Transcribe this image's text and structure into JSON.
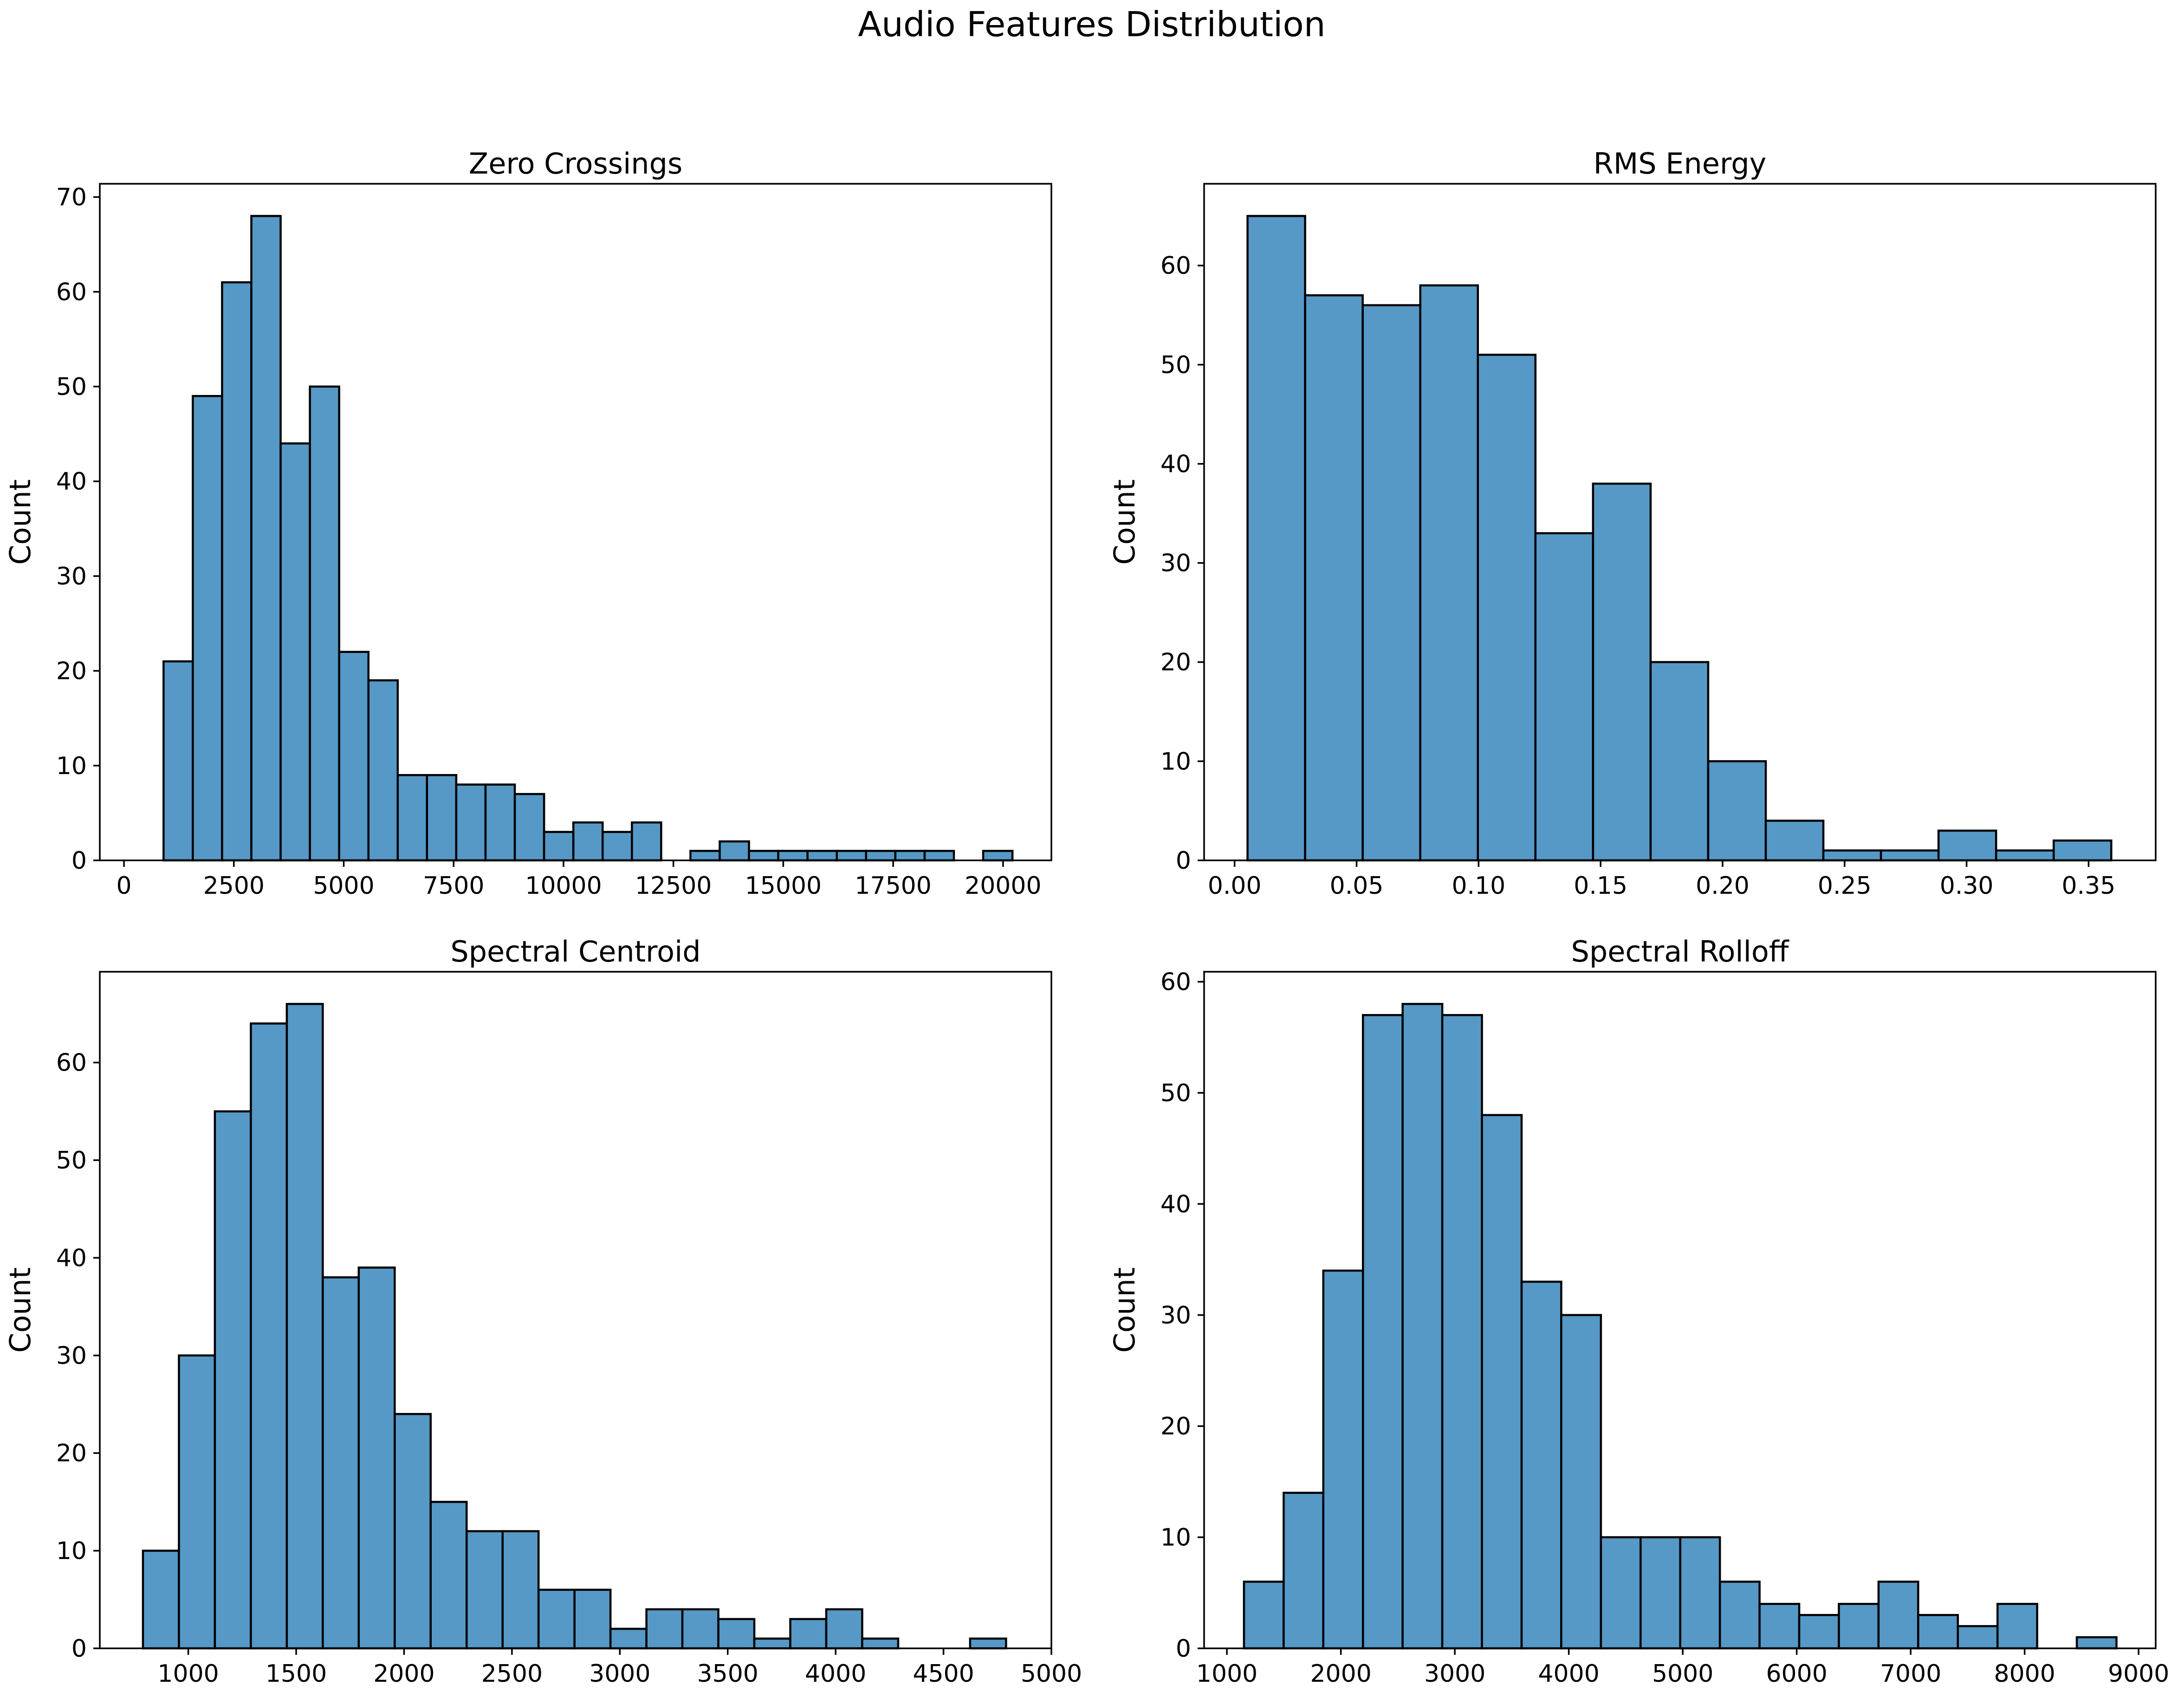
{
  "figure": {
    "title": "Audio Features Distribution"
  },
  "style": {
    "bar_fill": "#5698c6",
    "bar_edge": "#000000",
    "axes_edge": "#000000"
  },
  "chart_data": [
    {
      "type": "bar",
      "title": "Zero Crossings",
      "xlabel": "",
      "ylabel": "Count",
      "xlim": [
        -550,
        21100
      ],
      "ylim": [
        0,
        71.4
      ],
      "xticks": [
        0,
        2500,
        5000,
        7500,
        10000,
        12500,
        15000,
        17500,
        20000
      ],
      "yticks": [
        0,
        10,
        20,
        30,
        40,
        50,
        60,
        70
      ],
      "bin_edges": [
        900,
        1566,
        2232,
        2898,
        3564,
        4230,
        4896,
        5562,
        6228,
        6894,
        7560,
        8226,
        8892,
        9558,
        10224,
        10890,
        11556,
        12222,
        12888,
        13554,
        14220,
        14886,
        15552,
        16218,
        16884,
        17550,
        18216,
        18882,
        19548,
        20214
      ],
      "values": [
        21,
        49,
        61,
        68,
        44,
        50,
        22,
        19,
        9,
        9,
        8,
        8,
        7,
        3,
        4,
        3,
        4,
        0,
        1,
        2,
        1,
        1,
        1,
        1,
        1,
        1,
        1,
        0,
        1
      ]
    },
    {
      "type": "bar",
      "title": "RMS Energy",
      "xlabel": "",
      "ylabel": "Count",
      "xlim": [
        -0.0125,
        0.3775
      ],
      "ylim": [
        0,
        68.25
      ],
      "xticks": [
        0.0,
        0.05,
        0.1,
        0.15,
        0.2,
        0.25,
        0.3,
        0.35
      ],
      "xtick_labels": [
        "0.00",
        "0.05",
        "0.10",
        "0.15",
        "0.20",
        "0.25",
        "0.30",
        "0.35"
      ],
      "yticks": [
        0,
        10,
        20,
        30,
        40,
        50,
        60
      ],
      "bin_edges": [
        0.0053,
        0.0289,
        0.0525,
        0.0761,
        0.0997,
        0.1233,
        0.1469,
        0.1705,
        0.1941,
        0.2177,
        0.2413,
        0.2649,
        0.2885,
        0.3121,
        0.3357,
        0.3593
      ],
      "values": [
        65,
        57,
        56,
        58,
        51,
        33,
        38,
        20,
        10,
        4,
        1,
        1,
        3,
        1,
        2
      ]
    },
    {
      "type": "bar",
      "title": "Spectral Centroid",
      "xlabel": "",
      "ylabel": "Count",
      "xlim": [
        590,
        5000
      ],
      "ylim": [
        0,
        69.3
      ],
      "xticks": [
        1000,
        1500,
        2000,
        2500,
        3000,
        3500,
        4000,
        4500,
        5000
      ],
      "yticks": [
        0,
        10,
        20,
        30,
        40,
        50,
        60
      ],
      "bin_edges": [
        790,
        956.7,
        1123.3,
        1290,
        1456.7,
        1623.3,
        1790,
        1956.7,
        2123.3,
        2290,
        2456.7,
        2623.3,
        2790,
        2956.7,
        3123.3,
        3290,
        3456.7,
        3623.3,
        3790,
        3956.7,
        4123.3,
        4290,
        4456.7,
        4623.3,
        4790
      ],
      "values": [
        10,
        30,
        55,
        64,
        66,
        38,
        39,
        24,
        15,
        12,
        12,
        6,
        6,
        2,
        4,
        4,
        3,
        1,
        3,
        4,
        1,
        0,
        0,
        1
      ]
    },
    {
      "type": "bar",
      "title": "Spectral Rolloff",
      "xlabel": "",
      "ylabel": "Count",
      "xlim": [
        800,
        9150
      ],
      "ylim": [
        0,
        60.9
      ],
      "xticks": [
        1000,
        2000,
        3000,
        4000,
        5000,
        6000,
        7000,
        8000,
        9000
      ],
      "yticks": [
        0,
        10,
        20,
        30,
        40,
        50,
        60
      ],
      "bin_edges": [
        1150,
        1498,
        1846,
        2194,
        2542,
        2890,
        3238,
        3586,
        3934,
        4282,
        4630,
        4978,
        5326,
        5674,
        6022,
        6370,
        6718,
        7066,
        7414,
        7762,
        8110,
        8458,
        8806
      ],
      "values": [
        6,
        14,
        34,
        57,
        58,
        57,
        48,
        33,
        30,
        10,
        10,
        10,
        6,
        4,
        3,
        4,
        6,
        3,
        2,
        4,
        0,
        1
      ]
    }
  ]
}
